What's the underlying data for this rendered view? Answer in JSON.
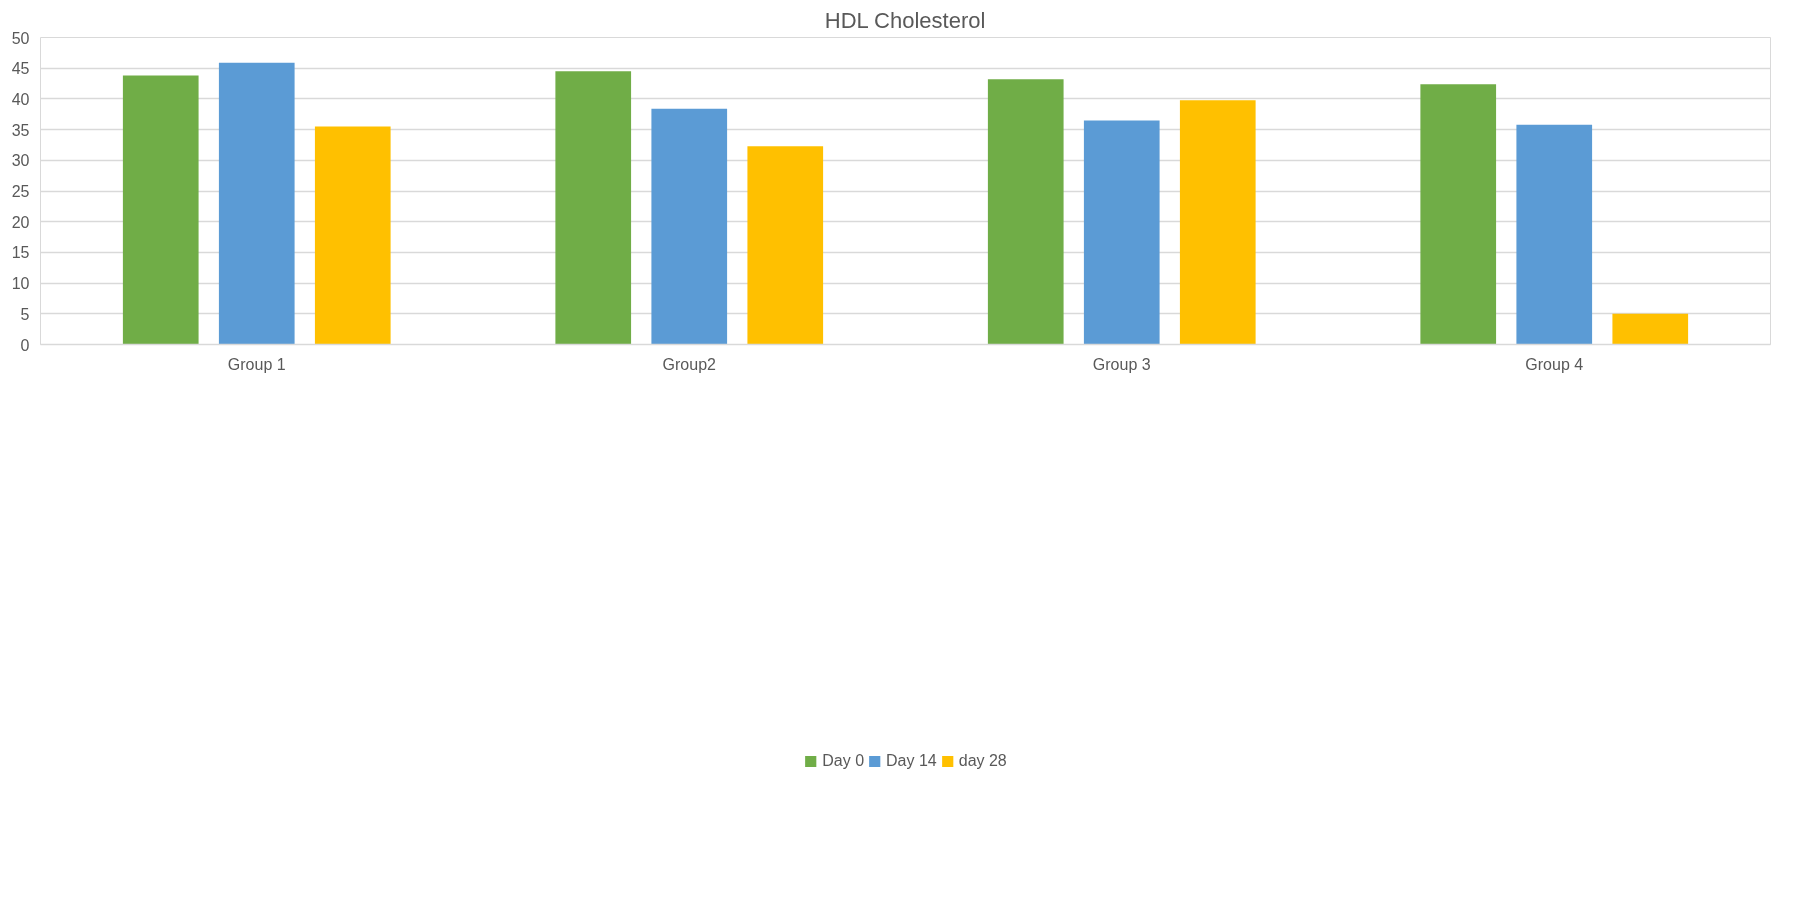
{
  "chart_data": {
    "type": "bar",
    "title": "HDL Cholesterol",
    "categories": [
      "Group 1",
      "Group2",
      "Group 3",
      "Group 4"
    ],
    "series": [
      {
        "name": "Day 0",
        "color": "#70ad47",
        "values": [
          43.8,
          44.5,
          43.2,
          42.4
        ]
      },
      {
        "name": "Day 14",
        "color": "#5b9bd5",
        "values": [
          45.9,
          38.4,
          36.5,
          35.8
        ]
      },
      {
        "name": "day 28",
        "color": "#ffc000",
        "values": [
          35.5,
          32.3,
          39.8,
          5.0
        ]
      }
    ],
    "ylim": [
      0,
      50
    ],
    "yticks": [
      0,
      5,
      10,
      15,
      20,
      25,
      30,
      35,
      40,
      45,
      50
    ],
    "grid": "y",
    "legend": "bottom"
  }
}
